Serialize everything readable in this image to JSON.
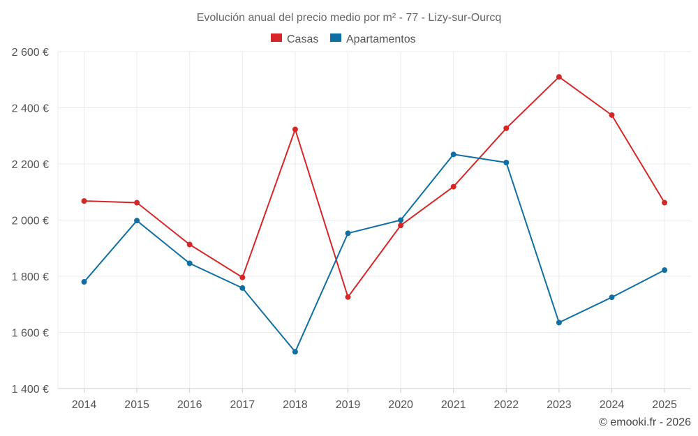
{
  "chart_data": {
    "type": "line",
    "title": "Evolución anual del precio medio por m² - 77 - Lizy-sur-Ourcq",
    "categories": [
      "2014",
      "2015",
      "2016",
      "2017",
      "2018",
      "2019",
      "2020",
      "2021",
      "2022",
      "2023",
      "2024",
      "2025"
    ],
    "series": [
      {
        "name": "Casas",
        "color": "#d62728",
        "values": [
          2068,
          2062,
          1913,
          1796,
          2323,
          1726,
          1981,
          2119,
          2327,
          2510,
          2374,
          2062
        ]
      },
      {
        "name": "Apartamentos",
        "color": "#0f6fa3",
        "values": [
          1780,
          1998,
          1846,
          1758,
          1531,
          1953,
          2000,
          2234,
          2205,
          1635,
          1725,
          1822
        ]
      }
    ],
    "ylim": [
      1400,
      2600
    ],
    "yticks": [
      1400,
      1600,
      1800,
      2000,
      2200,
      2400,
      2600
    ],
    "ytick_labels": [
      "1 400 €",
      "1 600 €",
      "1 800 €",
      "2 000 €",
      "2 200 €",
      "2 400 €",
      "2 600 €"
    ],
    "legend_position": "top-center",
    "grid": true
  },
  "footer": {
    "credit": "© emooki.fr - 2026"
  }
}
